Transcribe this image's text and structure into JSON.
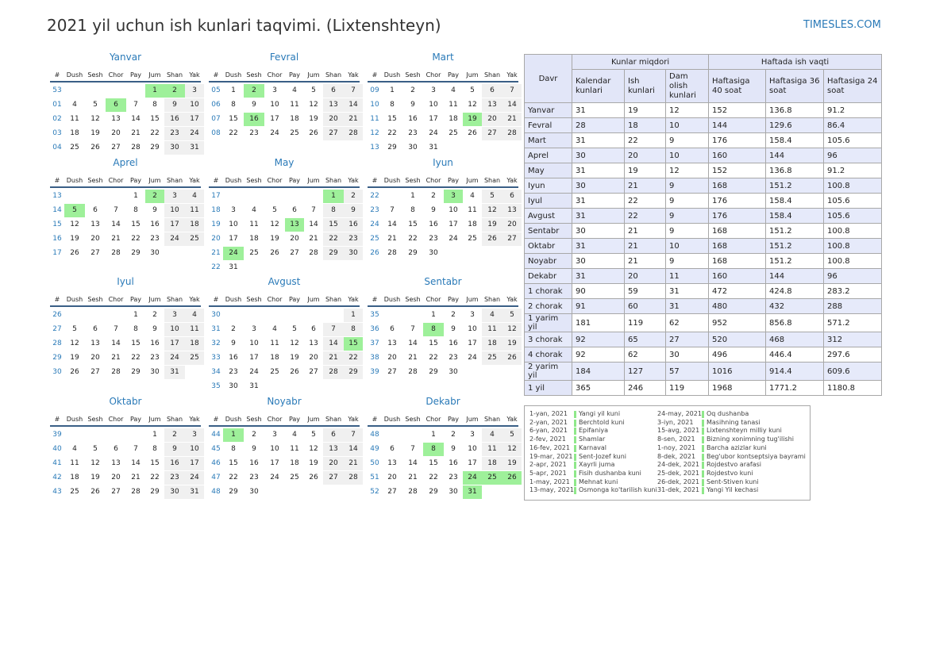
{
  "title": "2021 yil uchun ish kunlari taqvimi. (Lixtenshteyn)",
  "site": "TIMESLES.COM",
  "colors": {
    "accent": "#2a7ab8",
    "holiday": "#9ef09a",
    "weekend": "#f0f0f0",
    "rule": "#3a5f86",
    "header_bg": "#e2e6f8"
  },
  "weekday_headers": [
    "#",
    "Dush",
    "Sesh",
    "Chor",
    "Pay",
    "Jum",
    "Shan",
    "Yak"
  ],
  "months": [
    {
      "name": "Yanvar",
      "weeks": [
        {
          "wk": "53",
          "days": [
            "",
            "",
            "",
            "",
            "1",
            "2",
            "3"
          ]
        },
        {
          "wk": "01",
          "days": [
            "4",
            "5",
            "6",
            "7",
            "8",
            "9",
            "10"
          ]
        },
        {
          "wk": "02",
          "days": [
            "11",
            "12",
            "13",
            "14",
            "15",
            "16",
            "17"
          ]
        },
        {
          "wk": "03",
          "days": [
            "18",
            "19",
            "20",
            "21",
            "22",
            "23",
            "24"
          ]
        },
        {
          "wk": "04",
          "days": [
            "25",
            "26",
            "27",
            "28",
            "29",
            "30",
            "31"
          ]
        }
      ],
      "holidays": [
        "1",
        "2",
        "6"
      ]
    },
    {
      "name": "Fevral",
      "weeks": [
        {
          "wk": "05",
          "days": [
            "1",
            "2",
            "3",
            "4",
            "5",
            "6",
            "7"
          ]
        },
        {
          "wk": "06",
          "days": [
            "8",
            "9",
            "10",
            "11",
            "12",
            "13",
            "14"
          ]
        },
        {
          "wk": "07",
          "days": [
            "15",
            "16",
            "17",
            "18",
            "19",
            "20",
            "21"
          ]
        },
        {
          "wk": "08",
          "days": [
            "22",
            "23",
            "24",
            "25",
            "26",
            "27",
            "28"
          ]
        }
      ],
      "holidays": [
        "2",
        "16"
      ]
    },
    {
      "name": "Mart",
      "weeks": [
        {
          "wk": "09",
          "days": [
            "1",
            "2",
            "3",
            "4",
            "5",
            "6",
            "7"
          ]
        },
        {
          "wk": "10",
          "days": [
            "8",
            "9",
            "10",
            "11",
            "12",
            "13",
            "14"
          ]
        },
        {
          "wk": "11",
          "days": [
            "15",
            "16",
            "17",
            "18",
            "19",
            "20",
            "21"
          ]
        },
        {
          "wk": "12",
          "days": [
            "22",
            "23",
            "24",
            "25",
            "26",
            "27",
            "28"
          ]
        },
        {
          "wk": "13",
          "days": [
            "29",
            "30",
            "31",
            "",
            "",
            "",
            ""
          ]
        }
      ],
      "holidays": [
        "19"
      ]
    },
    {
      "name": "Aprel",
      "weeks": [
        {
          "wk": "13",
          "days": [
            "",
            "",
            "",
            "1",
            "2",
            "3",
            "4"
          ]
        },
        {
          "wk": "14",
          "days": [
            "5",
            "6",
            "7",
            "8",
            "9",
            "10",
            "11"
          ]
        },
        {
          "wk": "15",
          "days": [
            "12",
            "13",
            "14",
            "15",
            "16",
            "17",
            "18"
          ]
        },
        {
          "wk": "16",
          "days": [
            "19",
            "20",
            "21",
            "22",
            "23",
            "24",
            "25"
          ]
        },
        {
          "wk": "17",
          "days": [
            "26",
            "27",
            "28",
            "29",
            "30",
            "",
            ""
          ]
        }
      ],
      "holidays": [
        "2",
        "5"
      ]
    },
    {
      "name": "May",
      "weeks": [
        {
          "wk": "17",
          "days": [
            "",
            "",
            "",
            "",
            "",
            "1",
            "2"
          ]
        },
        {
          "wk": "18",
          "days": [
            "3",
            "4",
            "5",
            "6",
            "7",
            "8",
            "9"
          ]
        },
        {
          "wk": "19",
          "days": [
            "10",
            "11",
            "12",
            "13",
            "14",
            "15",
            "16"
          ]
        },
        {
          "wk": "20",
          "days": [
            "17",
            "18",
            "19",
            "20",
            "21",
            "22",
            "23"
          ]
        },
        {
          "wk": "21",
          "days": [
            "24",
            "25",
            "26",
            "27",
            "28",
            "29",
            "30"
          ]
        },
        {
          "wk": "22",
          "days": [
            "31",
            "",
            "",
            "",
            "",
            "",
            ""
          ]
        }
      ],
      "holidays": [
        "1",
        "13",
        "24"
      ]
    },
    {
      "name": "Iyun",
      "weeks": [
        {
          "wk": "22",
          "days": [
            "",
            "1",
            "2",
            "3",
            "4",
            "5",
            "6"
          ]
        },
        {
          "wk": "23",
          "days": [
            "7",
            "8",
            "9",
            "10",
            "11",
            "12",
            "13"
          ]
        },
        {
          "wk": "24",
          "days": [
            "14",
            "15",
            "16",
            "17",
            "18",
            "19",
            "20"
          ]
        },
        {
          "wk": "25",
          "days": [
            "21",
            "22",
            "23",
            "24",
            "25",
            "26",
            "27"
          ]
        },
        {
          "wk": "26",
          "days": [
            "28",
            "29",
            "30",
            "",
            "",
            "",
            ""
          ]
        }
      ],
      "holidays": [
        "3"
      ]
    },
    {
      "name": "Iyul",
      "weeks": [
        {
          "wk": "26",
          "days": [
            "",
            "",
            "",
            "1",
            "2",
            "3",
            "4"
          ]
        },
        {
          "wk": "27",
          "days": [
            "5",
            "6",
            "7",
            "8",
            "9",
            "10",
            "11"
          ]
        },
        {
          "wk": "28",
          "days": [
            "12",
            "13",
            "14",
            "15",
            "16",
            "17",
            "18"
          ]
        },
        {
          "wk": "29",
          "days": [
            "19",
            "20",
            "21",
            "22",
            "23",
            "24",
            "25"
          ]
        },
        {
          "wk": "30",
          "days": [
            "26",
            "27",
            "28",
            "29",
            "30",
            "31",
            ""
          ]
        }
      ],
      "holidays": []
    },
    {
      "name": "Avgust",
      "weeks": [
        {
          "wk": "30",
          "days": [
            "",
            "",
            "",
            "",
            "",
            "",
            "1"
          ]
        },
        {
          "wk": "31",
          "days": [
            "2",
            "3",
            "4",
            "5",
            "6",
            "7",
            "8"
          ]
        },
        {
          "wk": "32",
          "days": [
            "9",
            "10",
            "11",
            "12",
            "13",
            "14",
            "15"
          ]
        },
        {
          "wk": "33",
          "days": [
            "16",
            "17",
            "18",
            "19",
            "20",
            "21",
            "22"
          ]
        },
        {
          "wk": "34",
          "days": [
            "23",
            "24",
            "25",
            "26",
            "27",
            "28",
            "29"
          ]
        },
        {
          "wk": "35",
          "days": [
            "30",
            "31",
            "",
            "",
            "",
            "",
            ""
          ]
        }
      ],
      "holidays": [
        "15"
      ]
    },
    {
      "name": "Sentabr",
      "weeks": [
        {
          "wk": "35",
          "days": [
            "",
            "",
            "1",
            "2",
            "3",
            "4",
            "5"
          ]
        },
        {
          "wk": "36",
          "days": [
            "6",
            "7",
            "8",
            "9",
            "10",
            "11",
            "12"
          ]
        },
        {
          "wk": "37",
          "days": [
            "13",
            "14",
            "15",
            "16",
            "17",
            "18",
            "19"
          ]
        },
        {
          "wk": "38",
          "days": [
            "20",
            "21",
            "22",
            "23",
            "24",
            "25",
            "26"
          ]
        },
        {
          "wk": "39",
          "days": [
            "27",
            "28",
            "29",
            "30",
            "",
            "",
            ""
          ]
        }
      ],
      "holidays": [
        "8"
      ]
    },
    {
      "name": "Oktabr",
      "weeks": [
        {
          "wk": "39",
          "days": [
            "",
            "",
            "",
            "",
            "1",
            "2",
            "3"
          ]
        },
        {
          "wk": "40",
          "days": [
            "4",
            "5",
            "6",
            "7",
            "8",
            "9",
            "10"
          ]
        },
        {
          "wk": "41",
          "days": [
            "11",
            "12",
            "13",
            "14",
            "15",
            "16",
            "17"
          ]
        },
        {
          "wk": "42",
          "days": [
            "18",
            "19",
            "20",
            "21",
            "22",
            "23",
            "24"
          ]
        },
        {
          "wk": "43",
          "days": [
            "25",
            "26",
            "27",
            "28",
            "29",
            "30",
            "31"
          ]
        }
      ],
      "holidays": []
    },
    {
      "name": "Noyabr",
      "weeks": [
        {
          "wk": "44",
          "days": [
            "1",
            "2",
            "3",
            "4",
            "5",
            "6",
            "7"
          ]
        },
        {
          "wk": "45",
          "days": [
            "8",
            "9",
            "10",
            "11",
            "12",
            "13",
            "14"
          ]
        },
        {
          "wk": "46",
          "days": [
            "15",
            "16",
            "17",
            "18",
            "19",
            "20",
            "21"
          ]
        },
        {
          "wk": "47",
          "days": [
            "22",
            "23",
            "24",
            "25",
            "26",
            "27",
            "28"
          ]
        },
        {
          "wk": "48",
          "days": [
            "29",
            "30",
            "",
            "",
            "",
            "",
            ""
          ]
        }
      ],
      "holidays": [
        "1"
      ]
    },
    {
      "name": "Dekabr",
      "weeks": [
        {
          "wk": "48",
          "days": [
            "",
            "",
            "1",
            "2",
            "3",
            "4",
            "5"
          ]
        },
        {
          "wk": "49",
          "days": [
            "6",
            "7",
            "8",
            "9",
            "10",
            "11",
            "12"
          ]
        },
        {
          "wk": "50",
          "days": [
            "13",
            "14",
            "15",
            "16",
            "17",
            "18",
            "19"
          ]
        },
        {
          "wk": "51",
          "days": [
            "20",
            "21",
            "22",
            "23",
            "24",
            "25",
            "26"
          ]
        },
        {
          "wk": "52",
          "days": [
            "27",
            "28",
            "29",
            "30",
            "31",
            "",
            ""
          ]
        }
      ],
      "holidays": [
        "8",
        "24",
        "25",
        "26",
        "31"
      ]
    }
  ],
  "summary": {
    "group_days": "Kunlar miqdori",
    "group_hours": "Haftada ish vaqti",
    "col_period": "Davr",
    "col_calendar": "Kalendar kunlari",
    "col_work": "Ish kunlari",
    "col_rest": "Dam olish kunlari",
    "col_h40": "Haftasiga 40 soat",
    "col_h36": "Haftasiga 36 soat",
    "col_h24": "Haftasiga 24 soat",
    "rows": [
      {
        "period": "Yanvar",
        "cal": "31",
        "work": "19",
        "rest": "12",
        "h40": "152",
        "h36": "136.8",
        "h24": "91.2"
      },
      {
        "period": "Fevral",
        "cal": "28",
        "work": "18",
        "rest": "10",
        "h40": "144",
        "h36": "129.6",
        "h24": "86.4"
      },
      {
        "period": "Mart",
        "cal": "31",
        "work": "22",
        "rest": "9",
        "h40": "176",
        "h36": "158.4",
        "h24": "105.6"
      },
      {
        "period": "Aprel",
        "cal": "30",
        "work": "20",
        "rest": "10",
        "h40": "160",
        "h36": "144",
        "h24": "96"
      },
      {
        "period": "May",
        "cal": "31",
        "work": "19",
        "rest": "12",
        "h40": "152",
        "h36": "136.8",
        "h24": "91.2"
      },
      {
        "period": "Iyun",
        "cal": "30",
        "work": "21",
        "rest": "9",
        "h40": "168",
        "h36": "151.2",
        "h24": "100.8"
      },
      {
        "period": "Iyul",
        "cal": "31",
        "work": "22",
        "rest": "9",
        "h40": "176",
        "h36": "158.4",
        "h24": "105.6"
      },
      {
        "period": "Avgust",
        "cal": "31",
        "work": "22",
        "rest": "9",
        "h40": "176",
        "h36": "158.4",
        "h24": "105.6"
      },
      {
        "period": "Sentabr",
        "cal": "30",
        "work": "21",
        "rest": "9",
        "h40": "168",
        "h36": "151.2",
        "h24": "100.8"
      },
      {
        "period": "Oktabr",
        "cal": "31",
        "work": "21",
        "rest": "10",
        "h40": "168",
        "h36": "151.2",
        "h24": "100.8"
      },
      {
        "period": "Noyabr",
        "cal": "30",
        "work": "21",
        "rest": "9",
        "h40": "168",
        "h36": "151.2",
        "h24": "100.8"
      },
      {
        "period": "Dekabr",
        "cal": "31",
        "work": "20",
        "rest": "11",
        "h40": "160",
        "h36": "144",
        "h24": "96"
      },
      {
        "period": "1 chorak",
        "cal": "90",
        "work": "59",
        "rest": "31",
        "h40": "472",
        "h36": "424.8",
        "h24": "283.2"
      },
      {
        "period": "2 chorak",
        "cal": "91",
        "work": "60",
        "rest": "31",
        "h40": "480",
        "h36": "432",
        "h24": "288"
      },
      {
        "period": "1 yarim yil",
        "cal": "181",
        "work": "119",
        "rest": "62",
        "h40": "952",
        "h36": "856.8",
        "h24": "571.2"
      },
      {
        "period": "3 chorak",
        "cal": "92",
        "work": "65",
        "rest": "27",
        "h40": "520",
        "h36": "468",
        "h24": "312"
      },
      {
        "period": "4 chorak",
        "cal": "92",
        "work": "62",
        "rest": "30",
        "h40": "496",
        "h36": "446.4",
        "h24": "297.6"
      },
      {
        "period": "2 yarim yil",
        "cal": "184",
        "work": "127",
        "rest": "57",
        "h40": "1016",
        "h36": "914.4",
        "h24": "609.6"
      },
      {
        "period": "1 yil",
        "cal": "365",
        "work": "246",
        "rest": "119",
        "h40": "1968",
        "h36": "1771.2",
        "h24": "1180.8"
      }
    ]
  },
  "holidays_list": [
    {
      "date": "1-yan, 2021",
      "name": "Yangi yil kuni"
    },
    {
      "date": "2-yan, 2021",
      "name": "Berchtold kuni"
    },
    {
      "date": "6-yan, 2021",
      "name": "Epifaniya"
    },
    {
      "date": "2-fev, 2021",
      "name": "Shamlar"
    },
    {
      "date": "16-fev, 2021",
      "name": "Karnaval"
    },
    {
      "date": "19-mar, 2021",
      "name": "Sent-Jozef kuni"
    },
    {
      "date": "2-apr, 2021",
      "name": "Xayrli juma"
    },
    {
      "date": "5-apr, 2021",
      "name": "Fisih dushanba kuni"
    },
    {
      "date": "1-may, 2021",
      "name": "Mehnat kuni"
    },
    {
      "date": "13-may, 2021",
      "name": "Osmonga ko'tarilish kuni"
    },
    {
      "date": "24-may, 2021",
      "name": "Oq dushanba"
    },
    {
      "date": "3-iyn, 2021",
      "name": "Masihning tanasi"
    },
    {
      "date": "15-avg, 2021",
      "name": "Lixtenshteyn milliy kuni"
    },
    {
      "date": "8-sen, 2021",
      "name": "Bizning xonimning tug'ilishi"
    },
    {
      "date": "1-noy, 2021",
      "name": "Barcha azizlar kuni"
    },
    {
      "date": "8-dek, 2021",
      "name": "Beg'ubor kontseptsiya bayrami"
    },
    {
      "date": "24-dek, 2021",
      "name": "Rojdestvo arafasi"
    },
    {
      "date": "25-dek, 2021",
      "name": "Rojdestvo kuni"
    },
    {
      "date": "26-dek, 2021",
      "name": "Sent-Stiven kuni"
    },
    {
      "date": "31-dek, 2021",
      "name": "Yangi Yil kechasi"
    }
  ]
}
